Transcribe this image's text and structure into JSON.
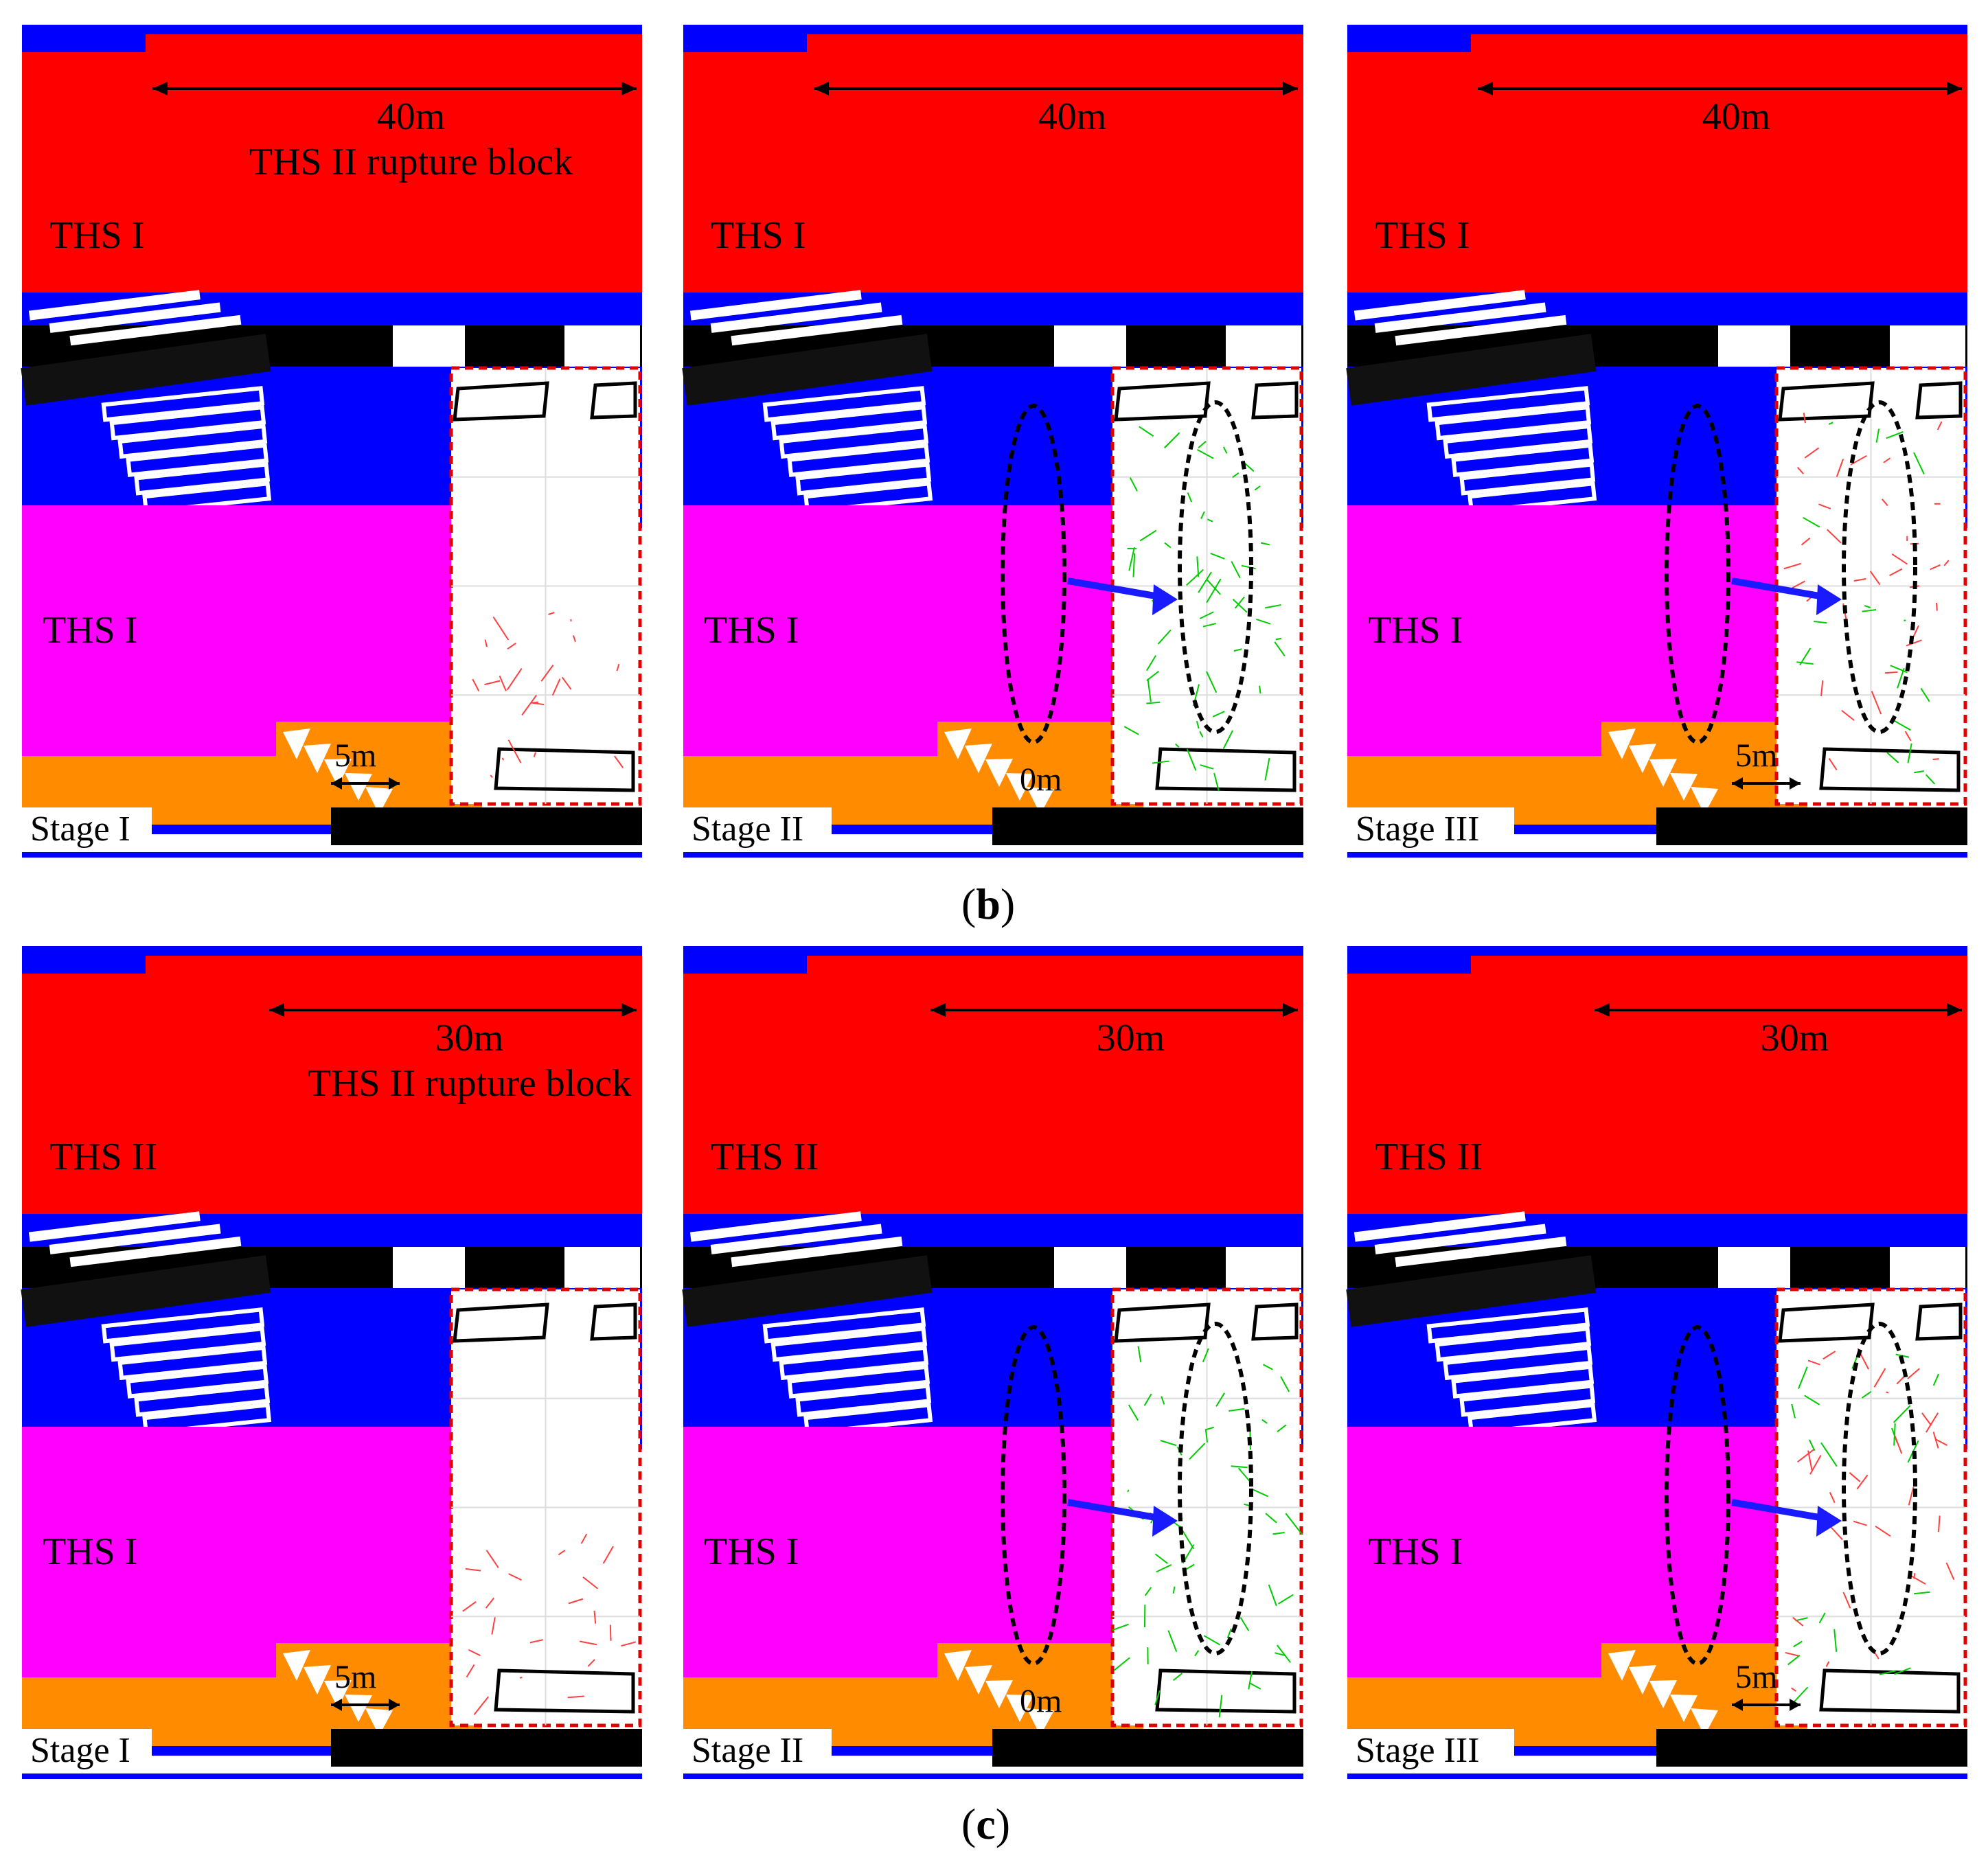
{
  "colors": {
    "ths_top": "#ff0000",
    "ths_mid": "#ff00ff",
    "rock_blue": "#0000ff",
    "coal_orange": "#ff8c00",
    "coal_black": "#000000",
    "zoom_border": "#e00000",
    "arrow": "#1a1aff",
    "crack_red": "#ff4040",
    "crack_green": "#00cc00"
  },
  "captions": {
    "b": "b",
    "c": "c"
  },
  "panels": [
    {
      "id": "b1",
      "stage": "Stage I",
      "top_label": "THS I",
      "mid_label": "THS I",
      "span_label": "40m",
      "rupture_label": "THS II rupture block",
      "dist_label": "5m",
      "show_ellipses": false,
      "crack_color": "red"
    },
    {
      "id": "b2",
      "stage": "Stage II",
      "top_label": "THS I",
      "mid_label": "THS I",
      "span_label": "40m",
      "rupture_label": "",
      "dist_label": "0m",
      "show_ellipses": true,
      "crack_color": "green"
    },
    {
      "id": "b3",
      "stage": "Stage III",
      "top_label": "THS I",
      "mid_label": "THS I",
      "span_label": "40m",
      "rupture_label": "",
      "dist_label": "5m",
      "show_ellipses": true,
      "crack_color": "mixed"
    },
    {
      "id": "c1",
      "stage": "Stage I",
      "top_label": "THS II",
      "mid_label": "THS I",
      "span_label": "30m",
      "rupture_label": "THS II rupture block",
      "dist_label": "5m",
      "show_ellipses": false,
      "crack_color": "red"
    },
    {
      "id": "c2",
      "stage": "Stage II",
      "top_label": "THS II",
      "mid_label": "THS I",
      "span_label": "30m",
      "rupture_label": "",
      "dist_label": "0m",
      "show_ellipses": true,
      "crack_color": "green"
    },
    {
      "id": "c3",
      "stage": "Stage III",
      "top_label": "THS II",
      "mid_label": "THS I",
      "span_label": "30m",
      "rupture_label": "",
      "dist_label": "5m",
      "show_ellipses": true,
      "crack_color": "mixed"
    }
  ]
}
